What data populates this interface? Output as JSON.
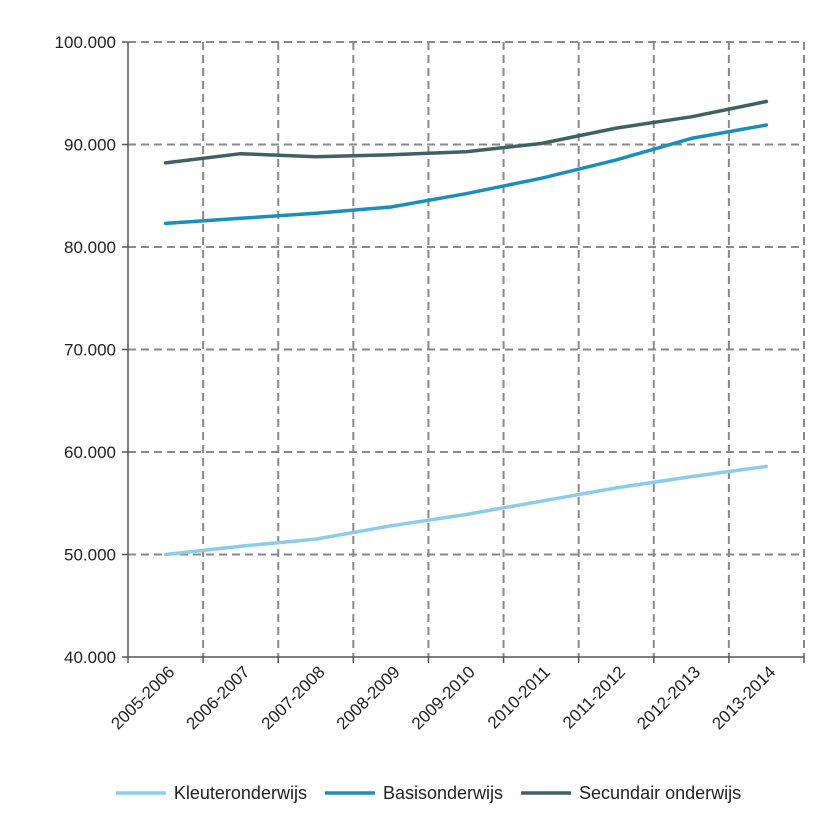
{
  "chart_data": {
    "type": "line",
    "categories": [
      "2005-2006",
      "2006-2007",
      "2007-2008",
      "2008-2009",
      "2009-2010",
      "2010-2011",
      "2011-2012",
      "2012-2013",
      "2013-2014"
    ],
    "y_ticks": [
      "40.000",
      "50.000",
      "60.000",
      "70.000",
      "80.000",
      "90.000",
      "100.000"
    ],
    "ylim": [
      40000,
      100000
    ],
    "grid": true,
    "legend_position": "bottom",
    "series": [
      {
        "name": "Kleuteronderwijs",
        "color": "#8ccde9",
        "values": [
          50000,
          50800,
          51500,
          52800,
          53900,
          55200,
          56500,
          57600,
          58600
        ]
      },
      {
        "name": "Basisonderwijs",
        "color": "#1b8fbc",
        "values": [
          82300,
          82800,
          83300,
          83900,
          85200,
          86700,
          88500,
          90600,
          91900
        ]
      },
      {
        "name": "Secundair onderwijs",
        "color": "#3e6264",
        "values": [
          88200,
          89100,
          88800,
          89000,
          89300,
          90100,
          91600,
          92700,
          94200
        ]
      }
    ]
  }
}
